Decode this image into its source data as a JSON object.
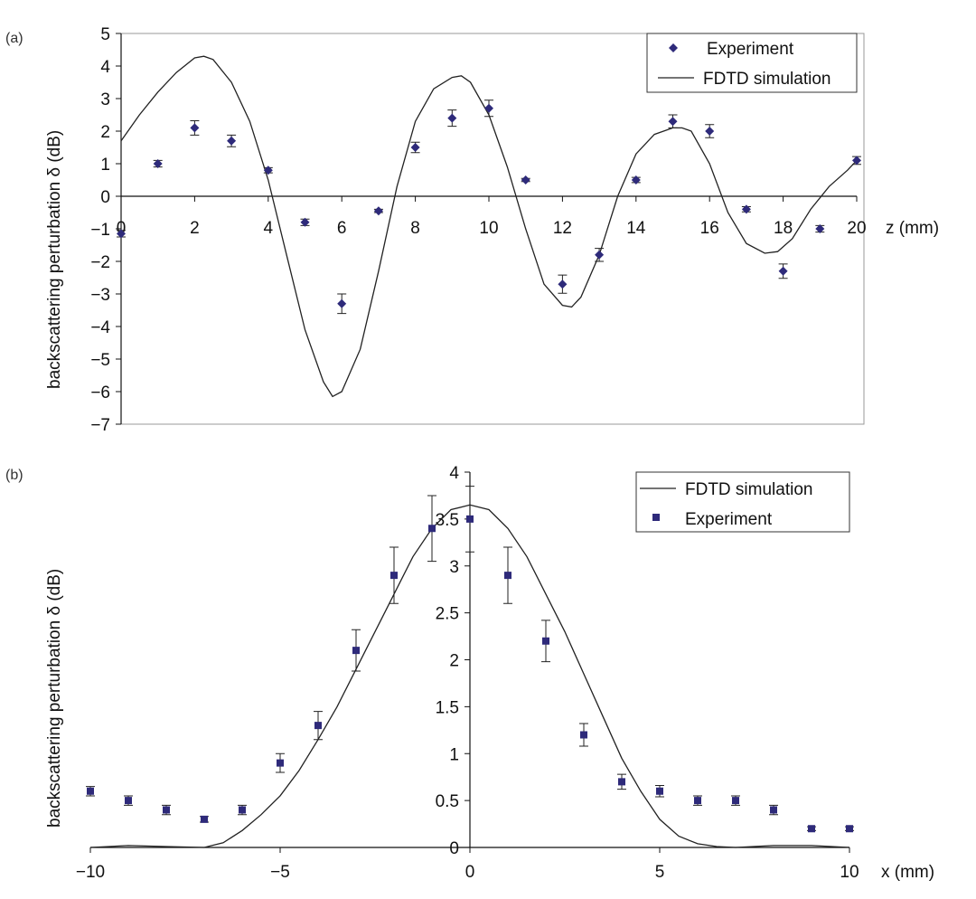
{
  "chart_data": [
    {
      "panel_label": "(a)",
      "type": "line",
      "title": "",
      "xlabel": "z (mm)",
      "ylabel": "backscattering perturbation δ (dB)",
      "xlim": [
        0,
        20
      ],
      "ylim": [
        -7,
        5
      ],
      "x_ticks": [
        "0",
        "2",
        "4",
        "6",
        "8",
        "10",
        "12",
        "14",
        "16",
        "18",
        "20"
      ],
      "y_ticks": [
        "5",
        "4",
        "3",
        "2",
        "1",
        "0",
        "−1",
        "−2",
        "−3",
        "−4",
        "−5",
        "−6",
        "−7"
      ],
      "grid": false,
      "legend": [
        "Experiment",
        "FDTD simulation"
      ],
      "legend_position": "top-right",
      "series": [
        {
          "name": "FDTD simulation",
          "type": "line",
          "color": "#222222",
          "x": [
            0,
            0.5,
            1,
            1.5,
            2,
            2.25,
            2.5,
            3,
            3.5,
            4,
            4.5,
            5,
            5.5,
            5.75,
            6,
            6.5,
            7,
            7.5,
            8,
            8.5,
            9,
            9.25,
            9.5,
            10,
            10.5,
            11,
            11.5,
            12,
            12.25,
            12.5,
            13,
            13.5,
            14,
            14.5,
            15,
            15.25,
            15.5,
            16,
            16.5,
            17,
            17.5,
            17.85,
            18.25,
            18.75,
            19.25,
            19.75,
            20
          ],
          "y": [
            1.7,
            2.5,
            3.2,
            3.8,
            4.25,
            4.3,
            4.2,
            3.5,
            2.3,
            0.5,
            -1.8,
            -4.1,
            -5.7,
            -6.15,
            -6.0,
            -4.7,
            -2.3,
            0.3,
            2.3,
            3.3,
            3.65,
            3.7,
            3.5,
            2.5,
            0.9,
            -1.0,
            -2.7,
            -3.35,
            -3.4,
            -3.1,
            -1.8,
            0.0,
            1.3,
            1.9,
            2.1,
            2.1,
            2.0,
            1.0,
            -0.5,
            -1.45,
            -1.75,
            -1.7,
            -1.3,
            -0.4,
            0.3,
            0.8,
            1.1
          ]
        },
        {
          "name": "Experiment",
          "type": "scatter",
          "marker": "diamond",
          "color": "#2e2a7a",
          "x": [
            0,
            1,
            2,
            3,
            4,
            5,
            6,
            7,
            8,
            9,
            10,
            11,
            12,
            13,
            14,
            15,
            16,
            17,
            18,
            19,
            20
          ],
          "y": [
            -1.15,
            1.0,
            2.1,
            1.7,
            0.8,
            -0.8,
            -3.3,
            -0.45,
            1.5,
            2.4,
            2.7,
            0.5,
            -2.7,
            -1.8,
            0.5,
            2.3,
            2.0,
            -0.4,
            -2.3,
            -1.0,
            1.1
          ],
          "err": [
            0.1,
            0.1,
            0.22,
            0.18,
            0.08,
            0.1,
            0.3,
            0.05,
            0.16,
            0.25,
            0.25,
            0.05,
            0.28,
            0.2,
            0.08,
            0.2,
            0.2,
            0.08,
            0.22,
            0.1,
            0.12
          ]
        }
      ]
    },
    {
      "panel_label": "(b)",
      "type": "line",
      "title": "",
      "xlabel": "x (mm)",
      "ylabel": "backscattering perturbation δ (dB)",
      "xlim": [
        -10,
        10
      ],
      "ylim": [
        0,
        4
      ],
      "x_ticks": [
        "−10",
        "−5",
        "0",
        "5",
        "10"
      ],
      "y_ticks": [
        "0",
        "0.5",
        "1",
        "1.5",
        "2",
        "2.5",
        "3",
        "3.5",
        "4"
      ],
      "grid": false,
      "legend": [
        "FDTD simulation",
        "Experiment"
      ],
      "legend_position": "top-right",
      "series": [
        {
          "name": "FDTD simulation",
          "type": "line",
          "color": "#222222",
          "x": [
            -10,
            -9,
            -8,
            -7,
            -6.5,
            -6,
            -5.5,
            -5,
            -4.5,
            -4,
            -3.5,
            -3,
            -2.5,
            -2,
            -1.5,
            -1,
            -0.5,
            0,
            0.5,
            1,
            1.5,
            2,
            2.5,
            3,
            3.5,
            4,
            4.5,
            5,
            5.5,
            6,
            6.5,
            7,
            8,
            9,
            10
          ],
          "y": [
            0,
            0.02,
            0.01,
            0,
            0.05,
            0.18,
            0.35,
            0.55,
            0.82,
            1.15,
            1.5,
            1.9,
            2.3,
            2.7,
            3.1,
            3.4,
            3.6,
            3.65,
            3.6,
            3.4,
            3.1,
            2.7,
            2.3,
            1.85,
            1.4,
            0.95,
            0.6,
            0.3,
            0.12,
            0.04,
            0.01,
            0,
            0.02,
            0.02,
            0
          ]
        },
        {
          "name": "Experiment",
          "type": "scatter",
          "marker": "square",
          "color": "#2e2a7a",
          "x": [
            -10,
            -9,
            -8,
            -7,
            -6,
            -5,
            -4,
            -3,
            -2,
            -1,
            0,
            1,
            2,
            3,
            4,
            5,
            6,
            7,
            8,
            9,
            10
          ],
          "y": [
            0.6,
            0.5,
            0.4,
            0.3,
            0.4,
            0.9,
            1.3,
            2.1,
            2.9,
            3.4,
            3.5,
            2.9,
            2.2,
            1.2,
            0.7,
            0.6,
            0.5,
            0.5,
            0.4,
            0.2,
            0.2
          ],
          "err": [
            0.05,
            0.05,
            0.05,
            0.03,
            0.05,
            0.1,
            0.15,
            0.22,
            0.3,
            0.35,
            0.35,
            0.3,
            0.22,
            0.12,
            0.08,
            0.06,
            0.05,
            0.05,
            0.05,
            0.02,
            0.02
          ]
        }
      ]
    }
  ]
}
